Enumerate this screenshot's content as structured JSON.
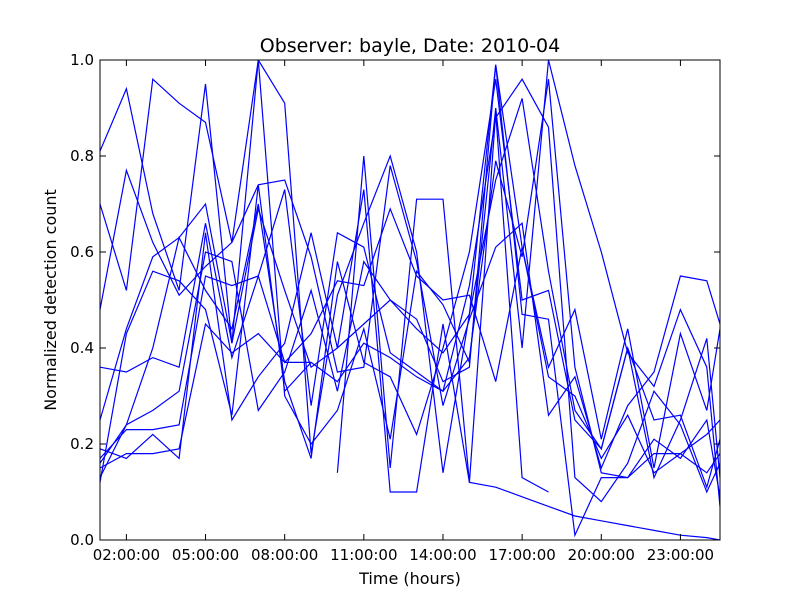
{
  "chart_data": {
    "type": "line",
    "title": "Observer: bayle, Date: 2010-04",
    "xlabel": "Time (hours)",
    "ylabel": "Normalized detection count",
    "xlim": [
      1.0,
      24.5
    ],
    "ylim": [
      0.0,
      1.0
    ],
    "x_unit": "hours",
    "xticks": [
      {
        "value": 2,
        "label": "02:00:00"
      },
      {
        "value": 5,
        "label": "05:00:00"
      },
      {
        "value": 8,
        "label": "08:00:00"
      },
      {
        "value": 11,
        "label": "11:00:00"
      },
      {
        "value": 14,
        "label": "14:00:00"
      },
      {
        "value": 17,
        "label": "17:00:00"
      },
      {
        "value": 20,
        "label": "20:00:00"
      },
      {
        "value": 23,
        "label": "23:00:00"
      }
    ],
    "yticks": [
      {
        "value": 0.0,
        "label": "0.0"
      },
      {
        "value": 0.2,
        "label": "0.2"
      },
      {
        "value": 0.4,
        "label": "0.4"
      },
      {
        "value": 0.6,
        "label": "0.6"
      },
      {
        "value": 0.8,
        "label": "0.8"
      },
      {
        "value": 1.0,
        "label": "1.0"
      }
    ],
    "grid": false,
    "line_color": "#0000ff",
    "series": [
      {
        "x": [
          1,
          2,
          3,
          4,
          5,
          6,
          7,
          8,
          9,
          10,
          11,
          12,
          13,
          14,
          15,
          16,
          17,
          18,
          19,
          20,
          21,
          22,
          23,
          24,
          24.5
        ],
        "y": [
          0.81,
          0.94,
          0.68,
          0.52,
          0.95,
          0.41,
          0.69,
          0.52,
          0.36,
          0.4,
          0.45,
          0.5,
          0.44,
          0.39,
          0.47,
          0.99,
          0.61,
          0.34,
          0.3,
          0.17,
          0.26,
          0.14,
          0.18,
          0.14,
          0.18
        ]
      },
      {
        "x": [
          1,
          2,
          3,
          4,
          5,
          6,
          7,
          8,
          9,
          10,
          11,
          12,
          13,
          14,
          15,
          16,
          17,
          18,
          19,
          20,
          21,
          22,
          23,
          24,
          24.5
        ],
        "y": [
          0.7,
          0.52,
          0.96,
          0.91,
          0.87,
          0.62,
          1.0,
          0.3,
          0.2,
          0.27,
          0.44,
          0.21,
          0.56,
          0.49,
          0.37,
          0.9,
          0.4,
          1.0,
          0.78,
          0.6,
          0.39,
          0.32,
          0.48,
          0.36,
          0.07
        ]
      },
      {
        "x": [
          1,
          2,
          3,
          4,
          5,
          6,
          7,
          8,
          9,
          10,
          11,
          12,
          13,
          14,
          15,
          16,
          17,
          18,
          19,
          20,
          21,
          22,
          23,
          24,
          24.5
        ],
        "y": [
          0.48,
          0.77,
          0.62,
          0.51,
          0.57,
          0.62,
          0.74,
          0.75,
          0.59,
          0.35,
          0.36,
          0.78,
          0.58,
          0.28,
          0.46,
          0.61,
          0.66,
          0.26,
          0.34,
          0.15,
          0.28,
          0.35,
          0.55,
          0.54,
          0.45
        ]
      },
      {
        "x": [
          1,
          2,
          3,
          4,
          5,
          6,
          7,
          8,
          9,
          10,
          11,
          12,
          13,
          14,
          15,
          16,
          17,
          18,
          19,
          20,
          21,
          22,
          23,
          24,
          24.5
        ],
        "y": [
          0.25,
          0.44,
          0.59,
          0.63,
          0.7,
          0.41,
          1.0,
          0.91,
          0.18,
          0.51,
          0.66,
          0.8,
          0.6,
          0.14,
          0.47,
          0.75,
          0.92,
          0.56,
          0.27,
          0.19,
          0.4,
          0.25,
          0.26,
          0.11,
          0.21
        ]
      },
      {
        "x": [
          1,
          2,
          3,
          4,
          5,
          6,
          7,
          8,
          9,
          10,
          11,
          12,
          13,
          14,
          15,
          16,
          17,
          18,
          19,
          20,
          21,
          22,
          23,
          24,
          24.5
        ],
        "y": [
          0.16,
          0.24,
          0.27,
          0.31,
          0.6,
          0.58,
          0.27,
          0.35,
          0.52,
          0.31,
          0.58,
          0.5,
          0.46,
          0.33,
          0.36,
          0.99,
          0.47,
          0.46,
          0.01,
          0.13,
          0.13,
          0.21,
          0.17,
          0.25,
          0.09
        ]
      },
      {
        "x": [
          1,
          2,
          3,
          4,
          5,
          6,
          7,
          8,
          9,
          10,
          11,
          12,
          13,
          14,
          15,
          16,
          17,
          18,
          19,
          20,
          21,
          22,
          23,
          24,
          24.5
        ],
        "y": [
          0.13,
          0.24,
          0.4,
          0.63,
          0.52,
          0.44,
          0.7,
          0.33,
          0.17,
          0.58,
          0.37,
          0.34,
          0.22,
          0.4,
          0.6,
          0.96,
          0.5,
          0.52,
          0.25,
          0.19,
          0.4,
          0.13,
          0.25,
          0.42,
          0.13
        ]
      },
      {
        "x": [
          1,
          2,
          3,
          4,
          5,
          6,
          7,
          8,
          9,
          10,
          11,
          12,
          13,
          14,
          15,
          16,
          17,
          18,
          19,
          20,
          21,
          22,
          23,
          24,
          24.5
        ],
        "y": [
          0.19,
          0.17,
          0.22,
          0.17,
          0.64,
          0.25,
          0.34,
          0.41,
          0.64,
          0.4,
          0.73,
          0.1,
          0.1,
          0.45,
          0.12,
          0.11,
          0.09,
          0.07,
          0.05,
          0.04,
          0.03,
          0.02,
          0.01,
          0.005,
          0.0
        ]
      },
      {
        "x": [
          1,
          2,
          3,
          4,
          5,
          6,
          7,
          8,
          9,
          10,
          11,
          12,
          13,
          14,
          15,
          16,
          17,
          18,
          19,
          20,
          21,
          22,
          23,
          24,
          24.5
        ],
        "y": [
          0.36,
          0.35,
          0.38,
          0.36,
          0.66,
          0.38,
          0.55,
          0.37,
          0.43,
          0.54,
          0.53,
          0.69,
          0.55,
          0.5,
          0.51,
          0.33,
          0.61,
          0.36,
          0.48,
          0.21,
          0.44,
          0.15,
          0.43,
          0.27,
          0.44
        ]
      },
      {
        "x": [
          1,
          2,
          3,
          4,
          5,
          6,
          7,
          8,
          9,
          10,
          11,
          12,
          13,
          14,
          15,
          16,
          17,
          18,
          19,
          20,
          21,
          22,
          23,
          24,
          24.5
        ],
        "y": [
          0.15,
          0.18,
          0.18,
          0.19,
          0.45,
          0.39,
          0.43,
          0.37,
          0.37,
          0.33,
          0.41,
          0.38,
          0.34,
          0.31,
          0.53,
          0.88,
          0.96,
          0.86,
          0.13,
          0.08,
          0.16,
          0.31,
          0.24,
          0.1,
          0.16
        ]
      },
      {
        "x": [
          1,
          2,
          3,
          4,
          5,
          6,
          7,
          8,
          9,
          10,
          11,
          12,
          13,
          14,
          15,
          16,
          17,
          18,
          19,
          20,
          21,
          22,
          23,
          24,
          24.5
        ],
        "y": [
          0.17,
          0.23,
          0.23,
          0.24,
          0.55,
          0.53,
          0.55,
          0.73,
          0.28,
          0.64,
          0.61,
          0.39,
          0.35,
          0.31,
          0.38,
          0.79,
          0.59,
          0.96,
          0.36,
          0.14,
          0.13,
          0.18,
          0.18,
          0.22,
          0.25
        ]
      },
      {
        "x": [
          10,
          11,
          12,
          13,
          14,
          15,
          16,
          17,
          18
        ],
        "y": [
          0.14,
          0.8,
          0.15,
          0.71,
          0.71,
          0.12,
          0.89,
          0.13,
          0.1
        ]
      },
      {
        "x": [
          1,
          2,
          3,
          4,
          5,
          6,
          7,
          8,
          9
        ],
        "y": [
          0.12,
          0.43,
          0.56,
          0.54,
          0.48,
          0.26,
          0.74,
          0.31,
          0.37
        ]
      }
    ]
  }
}
